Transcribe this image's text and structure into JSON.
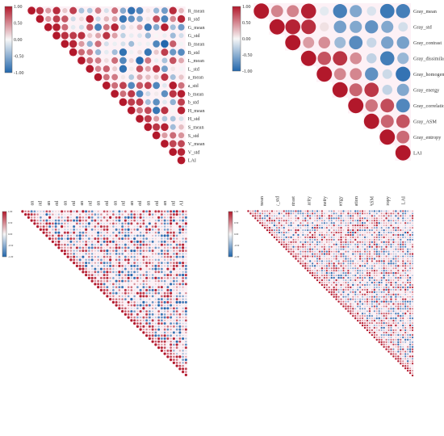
{
  "figure": {
    "panels": [
      "panel-a",
      "panel-b",
      "panel-c",
      "panel-d"
    ]
  },
  "colorbar": {
    "ticks": [
      "1.00",
      "0.50",
      "0.00",
      "-0.50",
      "-1.00"
    ],
    "colors": {
      "positive": "#b2182b",
      "mid": "#f7f7f7",
      "negative": "#2166ac"
    }
  },
  "chart_data": [
    {
      "type": "heatmap",
      "style": "upper-triangle circle correlation matrix",
      "variables": [
        "R_mean",
        "R_std",
        "G_mean",
        "G_std",
        "B_mean",
        "B_std",
        "L_mean",
        "L_std",
        "a_mean",
        "a_std",
        "b_mean",
        "b_std",
        "H_mean",
        "H_std",
        "S_mean",
        "S_std",
        "V_mean",
        "V_std",
        "LAI"
      ],
      "value_range": [
        -1,
        1
      ],
      "colorbar_ticks": [
        "1.00",
        "0.50",
        "0.00",
        "-0.50",
        "-1.00"
      ]
    },
    {
      "type": "heatmap",
      "style": "upper-triangle circle correlation matrix",
      "variables": [
        "Gray_mean",
        "Gray_std",
        "Gray_contrast",
        "Gray_dissimilarity",
        "Gray_homogeneity",
        "Gray_energy",
        "Gray_correlation",
        "Gray_ASM",
        "Gray_entropy",
        "LAI"
      ],
      "value_range": [
        -1,
        1
      ],
      "colorbar_ticks": [
        "1.00",
        "0.50",
        "0.00",
        "-0.50",
        "-1.00"
      ]
    },
    {
      "type": "heatmap",
      "style": "upper-triangle circle correlation matrix",
      "variable_count": 55,
      "value_range": [
        -1,
        1
      ],
      "colorbar_ticks": [
        "1.00",
        "0.50",
        "0.00",
        "-0.50",
        "-1.00"
      ]
    },
    {
      "type": "heatmap",
      "style": "upper-triangle circle correlation matrix",
      "variable_count": 70,
      "value_range": [
        -1,
        1
      ],
      "colorbar_ticks": [
        "1.00",
        "0.50",
        "0.00",
        "-0.50",
        "-1.00"
      ]
    }
  ]
}
